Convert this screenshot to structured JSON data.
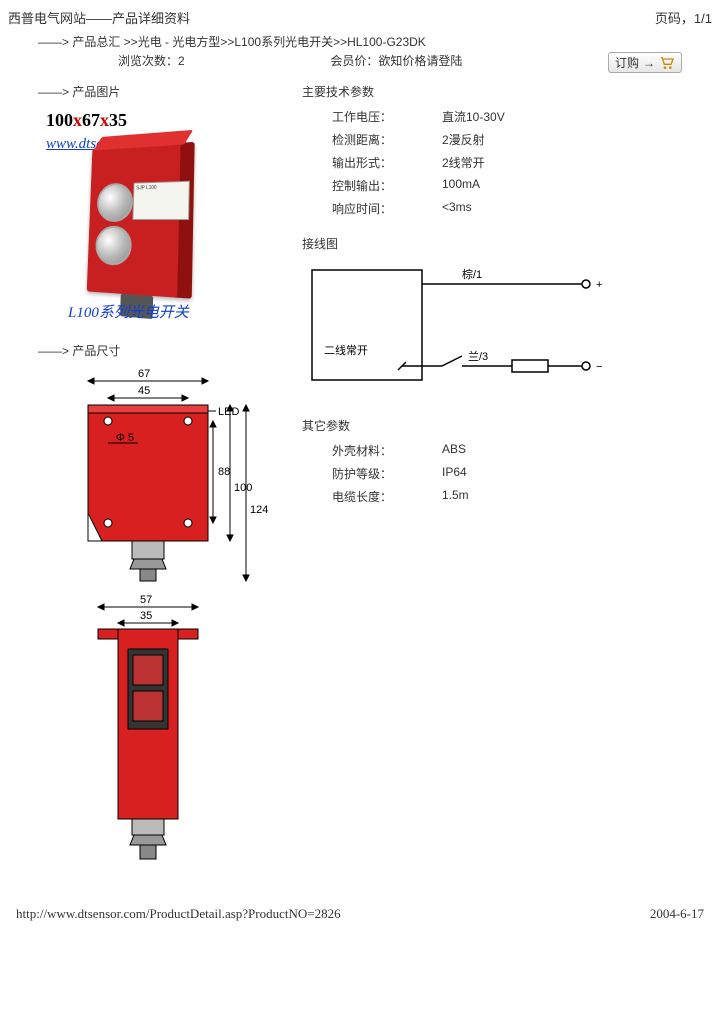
{
  "header": {
    "site_title": "西普电气网站——产品详细资料",
    "page_indicator": "页码，1/1"
  },
  "breadcrumb": "——> 产品总汇 >>光电 - 光电方型>>L100系列光电开关>>HL100-G23DK",
  "browse": {
    "label": "浏览次数：",
    "value": "2"
  },
  "member_note": "会员价：欲知价格请登陆",
  "order_button": "订购",
  "sections": {
    "photo": "——> 产品图片",
    "dims": "——> 产品尺寸",
    "main_specs": "主要技术参数",
    "wiring": "接线图",
    "other": "其它参数"
  },
  "photo_overlay": {
    "dims_text_a": "100",
    "dims_text_b": "67",
    "dims_text_c": "35",
    "url": "www.dtsensor.com",
    "series": "L100系列光电开关",
    "label_text": "SJP L100"
  },
  "main_specs": [
    {
      "k": "工作电压：",
      "v": "直流10-30V"
    },
    {
      "k": "检测距离：",
      "v": "2漫反射"
    },
    {
      "k": "输出形式：",
      "v": "2线常开"
    },
    {
      "k": "控制输出：",
      "v": "100mA"
    },
    {
      "k": "响应时间：",
      "v": "<3ms"
    }
  ],
  "wiring": {
    "node_label": "二线常开",
    "wire1": "棕/1",
    "wire3": "兰/3",
    "colors": {
      "line": "#000",
      "switch_fill": "#fff"
    }
  },
  "other_specs": [
    {
      "k": "外壳材料：",
      "v": "ABS"
    },
    {
      "k": "防护等级：",
      "v": "IP64"
    },
    {
      "k": "电缆长度：",
      "v": "1.5m"
    }
  ],
  "dims": {
    "w_outer": 67,
    "w_mid": 45,
    "hole_d": "Φ 5",
    "h1": 88,
    "h2": 100,
    "h3": 124,
    "bot_w1": 57,
    "bot_w2": 35,
    "led_label": "LED",
    "colors": {
      "body": "#d82020",
      "body_dark": "#a01010",
      "line": "#000",
      "glass": "#ddd",
      "metal": "#aaa"
    }
  },
  "footer": {
    "url": "http://www.dtsensor.com/ProductDetail.asp?ProductNO=2826",
    "date": "2004-6-17"
  }
}
